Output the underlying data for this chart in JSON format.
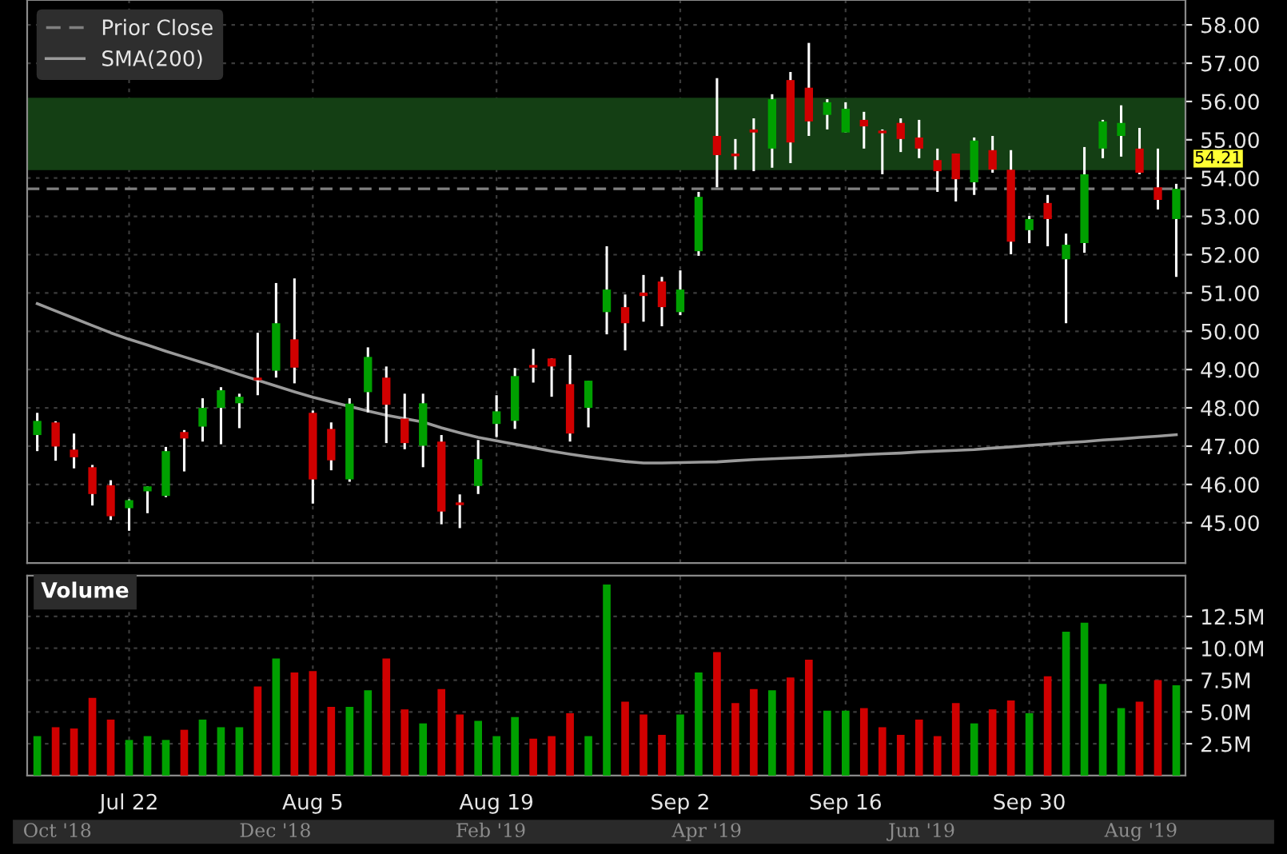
{
  "chart_data": [
    {
      "type": "candlestick",
      "categories": [
        null,
        null,
        null,
        null,
        null,
        null,
        null,
        null,
        null,
        null,
        null,
        null,
        null,
        null,
        null,
        null,
        null,
        null,
        null,
        null,
        null,
        null,
        null,
        null,
        null,
        null,
        null,
        null,
        null,
        null,
        null,
        null,
        null,
        null,
        null,
        null,
        null,
        null,
        null,
        null,
        null,
        null,
        null,
        null,
        null,
        null,
        null,
        null,
        null,
        null,
        null,
        null,
        null,
        null,
        null,
        null,
        null,
        null,
        null,
        null,
        null,
        null,
        null
      ],
      "ohlc": [
        [
          47.29,
          47.87,
          46.87,
          47.66
        ],
        [
          47.62,
          47.65,
          46.62,
          46.99
        ],
        [
          46.91,
          47.33,
          46.42,
          46.71
        ],
        [
          46.45,
          46.51,
          45.45,
          45.75
        ],
        [
          45.98,
          46.11,
          45.07,
          45.17
        ],
        [
          45.38,
          45.61,
          44.79,
          45.59
        ],
        [
          45.82,
          45.95,
          45.25,
          45.95
        ],
        [
          45.7,
          46.98,
          45.67,
          46.87
        ],
        [
          47.37,
          47.42,
          46.34,
          47.2
        ],
        [
          47.51,
          48.25,
          47.12,
          48.0
        ],
        [
          48.0,
          48.54,
          47.05,
          48.46
        ],
        [
          48.12,
          48.37,
          47.47,
          48.29
        ],
        [
          48.79,
          49.96,
          48.33,
          48.72
        ],
        [
          48.97,
          51.26,
          48.79,
          50.21
        ],
        [
          49.79,
          51.38,
          48.64,
          49.05
        ],
        [
          47.87,
          47.93,
          45.5,
          46.13
        ],
        [
          47.45,
          47.62,
          46.37,
          46.63
        ],
        [
          46.13,
          48.25,
          46.07,
          48.11
        ],
        [
          48.41,
          49.58,
          47.88,
          49.33
        ],
        [
          48.79,
          49.08,
          47.08,
          48.08
        ],
        [
          47.72,
          48.37,
          46.92,
          47.08
        ],
        [
          47.01,
          48.37,
          46.45,
          48.12
        ],
        [
          47.12,
          47.29,
          44.96,
          45.29
        ],
        [
          45.53,
          45.74,
          44.86,
          45.46
        ],
        [
          45.96,
          47.16,
          45.75,
          46.66
        ],
        [
          47.58,
          48.33,
          47.24,
          47.91
        ],
        [
          47.66,
          49.04,
          47.45,
          48.83
        ],
        [
          49.12,
          49.54,
          48.66,
          49.05
        ],
        [
          49.29,
          49.29,
          48.29,
          49.08
        ],
        [
          48.62,
          49.38,
          47.12,
          47.33
        ],
        [
          48.0,
          48.71,
          47.49,
          48.71
        ],
        [
          50.5,
          52.22,
          49.92,
          51.09
        ],
        [
          50.63,
          50.96,
          49.5,
          50.21
        ],
        [
          51.01,
          51.47,
          50.25,
          50.92
        ],
        [
          51.3,
          51.42,
          50.13,
          50.63
        ],
        [
          50.5,
          51.59,
          50.42,
          51.09
        ],
        [
          52.09,
          53.64,
          51.97,
          53.51
        ],
        [
          55.1,
          56.61,
          53.76,
          54.6
        ],
        [
          54.64,
          55.02,
          54.22,
          54.57
        ],
        [
          55.27,
          55.56,
          54.18,
          55.19
        ],
        [
          54.77,
          56.19,
          54.27,
          56.06
        ],
        [
          56.56,
          56.77,
          54.39,
          54.93
        ],
        [
          56.36,
          57.53,
          55.1,
          55.48
        ],
        [
          55.65,
          56.06,
          55.27,
          55.98
        ],
        [
          55.19,
          55.98,
          55.19,
          55.81
        ],
        [
          55.52,
          55.73,
          54.77,
          55.35
        ],
        [
          55.24,
          55.27,
          54.1,
          55.17
        ],
        [
          55.44,
          55.56,
          54.68,
          55.02
        ],
        [
          55.06,
          55.52,
          54.52,
          54.77
        ],
        [
          54.47,
          54.77,
          53.64,
          54.18
        ],
        [
          54.64,
          54.64,
          53.39,
          53.97
        ],
        [
          53.89,
          55.06,
          53.56,
          54.98
        ],
        [
          54.73,
          55.1,
          54.14,
          54.22
        ],
        [
          54.22,
          54.73,
          52.01,
          52.34
        ],
        [
          52.64,
          53.01,
          52.3,
          52.93
        ],
        [
          53.35,
          53.56,
          52.22,
          52.93
        ],
        [
          51.88,
          52.55,
          50.21,
          52.26
        ],
        [
          52.3,
          54.81,
          52.05,
          54.1
        ],
        [
          54.77,
          55.52,
          54.52,
          55.48
        ],
        [
          55.1,
          55.9,
          54.56,
          55.44
        ],
        [
          54.77,
          55.31,
          54.1,
          54.14
        ],
        [
          53.76,
          54.77,
          53.18,
          53.43
        ],
        [
          52.93,
          53.85,
          51.42,
          53.72
        ]
      ],
      "colors": [
        "#00a000",
        "#d00000",
        "#d00000",
        "#d00000",
        "#d00000",
        "#00a000",
        "#00a000",
        "#00a000",
        "#d00000",
        "#00a000",
        "#00a000",
        "#00a000",
        "#d00000",
        "#00a000",
        "#d00000",
        "#d00000",
        "#d00000",
        "#00a000",
        "#00a000",
        "#d00000",
        "#d00000",
        "#00a000",
        "#d00000",
        "#d00000",
        "#00a000",
        "#00a000",
        "#00a000",
        "#d00000",
        "#d00000",
        "#d00000",
        "#00a000",
        "#00a000",
        "#d00000",
        "#d00000",
        "#d00000",
        "#00a000",
        "#00a000",
        "#d00000",
        "#d00000",
        "#d00000",
        "#00a000",
        "#d00000",
        "#d00000",
        "#00a000",
        "#00a000",
        "#d00000",
        "#d00000",
        "#d00000",
        "#d00000",
        "#d00000",
        "#d00000",
        "#00a000",
        "#d00000",
        "#d00000",
        "#00a000",
        "#d00000",
        "#00a000",
        "#00a000",
        "#00a000",
        "#00a000",
        "#d00000",
        "#d00000",
        "#00a000"
      ],
      "series": [
        {
          "name": "SMA(200)",
          "type": "line",
          "color": "#9a9a9a",
          "values": [
            50.72,
            50.53,
            50.34,
            50.15,
            49.96,
            49.79,
            49.64,
            49.48,
            49.33,
            49.18,
            49.03,
            48.87,
            48.72,
            48.57,
            48.42,
            48.28,
            48.16,
            48.04,
            47.92,
            47.81,
            47.72,
            47.63,
            47.48,
            47.35,
            47.23,
            47.14,
            47.05,
            46.96,
            46.87,
            46.79,
            46.72,
            46.66,
            46.6,
            46.56,
            46.56,
            46.57,
            46.58,
            46.59,
            46.62,
            46.65,
            46.67,
            46.69,
            46.71,
            46.73,
            46.75,
            46.78,
            46.8,
            46.82,
            46.85,
            46.87,
            46.89,
            46.91,
            46.95,
            46.98,
            47.02,
            47.05,
            47.09,
            47.12,
            47.16,
            47.19,
            47.23,
            47.26,
            47.3
          ]
        }
      ],
      "ylim": [
        43.95,
        58.65
      ],
      "yticks": [
        {
          "value": 45,
          "label": "45.00"
        },
        {
          "value": 46,
          "label": "46.00"
        },
        {
          "value": 47,
          "label": "47.00"
        },
        {
          "value": 48,
          "label": "48.00"
        },
        {
          "value": 49,
          "label": "49.00"
        },
        {
          "value": 50,
          "label": "50.00"
        },
        {
          "value": 51,
          "label": "51.00"
        },
        {
          "value": 52,
          "label": "52.00"
        },
        {
          "value": 53,
          "label": "53.00"
        },
        {
          "value": 54,
          "label": "54.00"
        },
        {
          "value": 55,
          "label": "55.00"
        },
        {
          "value": 56,
          "label": "56.00"
        },
        {
          "value": 57,
          "label": "57.00"
        },
        {
          "value": 58,
          "label": "58.00"
        }
      ],
      "grid": true,
      "legend": "top left",
      "tick_labels": "y",
      "ref_lines": [
        {
          "axis": "y",
          "value": 53.72,
          "label": "Prior Close",
          "color": "#808080",
          "line_style": "dashed"
        }
      ],
      "bands": [
        {
          "axis": "y",
          "from": 54.21,
          "to": 56.1,
          "color": "#143f14",
          "label": "54.21"
        }
      ]
    },
    {
      "type": "bar",
      "title": "Volume",
      "categories": [
        null,
        null,
        null,
        null,
        null,
        "Jul 22",
        null,
        null,
        null,
        null,
        null,
        null,
        null,
        null,
        null,
        "Aug 5",
        null,
        null,
        null,
        null,
        null,
        null,
        null,
        null,
        null,
        "Aug 19",
        null,
        null,
        null,
        null,
        null,
        null,
        null,
        null,
        null,
        "Sep 2",
        null,
        null,
        null,
        null,
        null,
        null,
        null,
        null,
        "Sep 16",
        null,
        null,
        null,
        null,
        null,
        null,
        null,
        null,
        null,
        "Sep 30",
        null,
        null,
        null,
        null,
        null,
        null,
        null,
        null
      ],
      "values": [
        3.1,
        3.8,
        3.7,
        6.1,
        4.4,
        2.8,
        3.1,
        2.8,
        3.6,
        4.4,
        3.8,
        3.8,
        7.0,
        9.2,
        8.1,
        8.2,
        5.4,
        5.4,
        6.7,
        9.2,
        5.2,
        4.1,
        6.8,
        4.8,
        4.3,
        3.1,
        4.6,
        2.9,
        3.1,
        4.9,
        3.1,
        15.0,
        5.8,
        4.8,
        3.2,
        4.8,
        8.1,
        9.7,
        5.7,
        6.8,
        6.7,
        7.7,
        9.1,
        5.1,
        5.1,
        5.3,
        3.8,
        3.2,
        4.4,
        3.1,
        5.7,
        4.1,
        5.2,
        5.9,
        4.9,
        7.8,
        11.3,
        12.0,
        7.2,
        5.3,
        5.8,
        7.5,
        7.1
      ],
      "colors": [
        "#00a000",
        "#d00000",
        "#d00000",
        "#d00000",
        "#d00000",
        "#00a000",
        "#00a000",
        "#00a000",
        "#d00000",
        "#00a000",
        "#00a000",
        "#00a000",
        "#d00000",
        "#00a000",
        "#d00000",
        "#d00000",
        "#d00000",
        "#00a000",
        "#00a000",
        "#d00000",
        "#d00000",
        "#00a000",
        "#d00000",
        "#d00000",
        "#00a000",
        "#00a000",
        "#00a000",
        "#d00000",
        "#d00000",
        "#d00000",
        "#00a000",
        "#00a000",
        "#d00000",
        "#d00000",
        "#d00000",
        "#00a000",
        "#00a000",
        "#d00000",
        "#d00000",
        "#d00000",
        "#00a000",
        "#d00000",
        "#d00000",
        "#00a000",
        "#00a000",
        "#d00000",
        "#d00000",
        "#d00000",
        "#d00000",
        "#d00000",
        "#d00000",
        "#00a000",
        "#d00000",
        "#d00000",
        "#00a000",
        "#d00000",
        "#00a000",
        "#00a000",
        "#00a000",
        "#00a000",
        "#d00000",
        "#d00000",
        "#00a000"
      ],
      "ylim": [
        0,
        15.7
      ],
      "yticks": [
        {
          "value": 2.5,
          "label": "2.5M"
        },
        {
          "value": 5,
          "label": "5.0M"
        },
        {
          "value": 7.5,
          "label": "7.5M"
        },
        {
          "value": 10,
          "label": "10.0M"
        },
        {
          "value": 12.5,
          "label": "12.5M"
        }
      ],
      "grid": true
    },
    {
      "type": "other",
      "annotations": [
        "Oct '18",
        "Dec '18",
        "Feb '19",
        "Apr '19",
        "Jun '19",
        "Aug '19"
      ]
    }
  ]
}
